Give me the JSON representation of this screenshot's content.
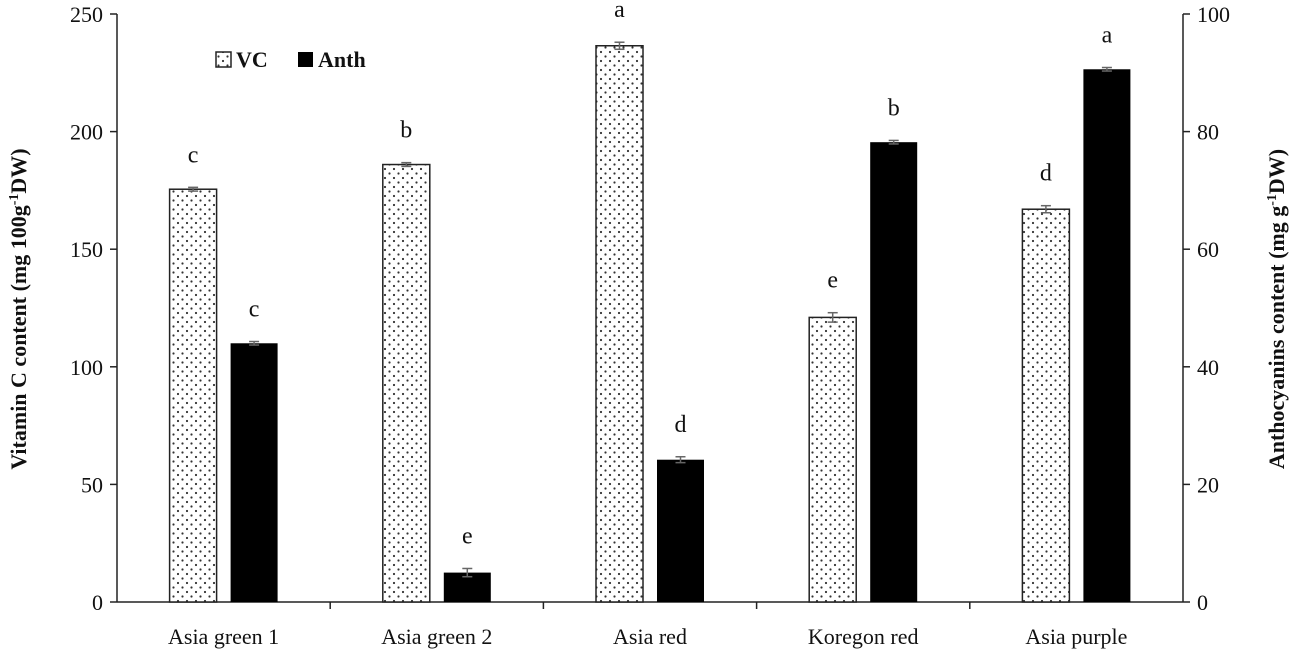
{
  "chart_data": {
    "type": "bar",
    "categories": [
      "Asia green 1",
      "Asia green 2",
      "Asia red",
      "Koregon red",
      "Asia purple"
    ],
    "series": [
      {
        "name": "VC",
        "axis": "left",
        "fill": "dotted",
        "values": [
          175.5,
          186,
          236.5,
          121,
          167
        ],
        "errors": [
          0.8,
          0.8,
          1.5,
          2.0,
          1.5
        ],
        "labels": [
          "c",
          "b",
          "a",
          "e",
          "d"
        ]
      },
      {
        "name": "Anth",
        "axis": "right",
        "fill": "solid",
        "values": [
          44,
          5,
          24.2,
          78.2,
          90.6
        ],
        "errors": [
          0.3,
          0.7,
          0.5,
          0.3,
          0.3
        ],
        "labels": [
          "c",
          "e",
          "d",
          "b",
          "a"
        ]
      }
    ],
    "y_left": {
      "label_main": "Vitamin C content (mg 100g",
      "label_sup": "-1",
      "label_end": "DW)",
      "ylim": [
        0,
        250
      ],
      "ticks": [
        "0",
        "50",
        "100",
        "150",
        "200",
        "250"
      ]
    },
    "y_right": {
      "label_main": "Anthocyanins content (mg g",
      "label_sup": "-1",
      "label_end": "DW)",
      "ylim": [
        0,
        100
      ],
      "ticks": [
        "0",
        "20",
        "40",
        "60",
        "80",
        "100"
      ]
    },
    "legend": {
      "placement": "top-left",
      "entries": [
        "VC",
        "Anth"
      ]
    },
    "grid": false,
    "colors": {
      "vc_fill": "#ffffff",
      "vc_dots": "#333333",
      "anth_fill": "#000000",
      "axis": "#222222",
      "error_bar": "#666666"
    }
  }
}
